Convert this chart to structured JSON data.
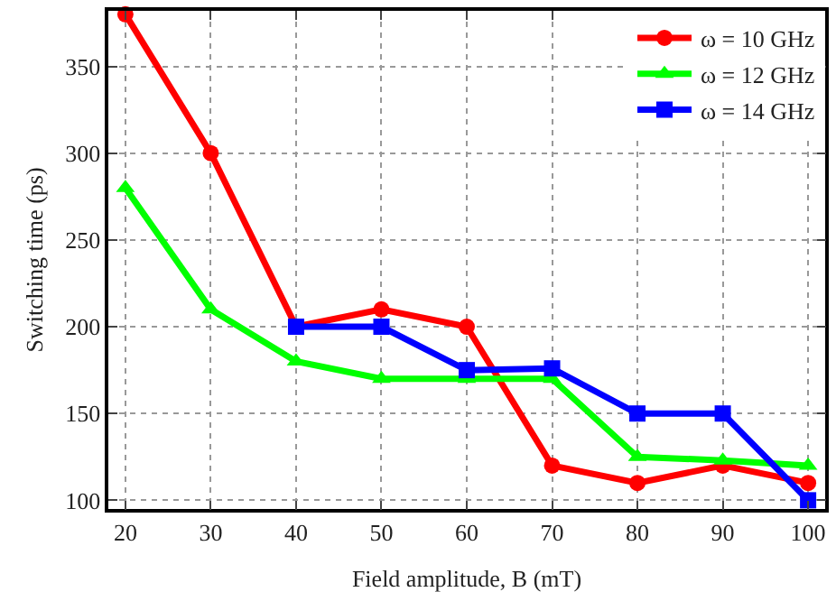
{
  "chart_data": {
    "type": "line",
    "xlabel": "Field amplitude, B (mT)",
    "ylabel": "Switching time (ps)",
    "x": [
      20,
      30,
      40,
      50,
      60,
      70,
      80,
      90,
      100
    ],
    "series": [
      {
        "name": "ω = 10 GHz",
        "color": "#ff0000",
        "marker": "circle",
        "values": [
          380,
          300,
          200,
          210,
          200,
          120,
          110,
          120,
          110
        ]
      },
      {
        "name": "ω = 12 GHz",
        "color": "#00ff00",
        "marker": "triangle",
        "values": [
          280,
          210,
          180,
          170,
          170,
          170,
          125,
          123,
          120
        ]
      },
      {
        "name": "ω = 14 GHz",
        "color": "#0000ff",
        "marker": "square",
        "values": [
          null,
          null,
          200,
          200,
          175,
          176,
          150,
          150,
          100
        ]
      }
    ],
    "xlim": [
      18,
      102
    ],
    "xticks": [
      20,
      30,
      40,
      50,
      60,
      70,
      80,
      90,
      100
    ],
    "ylim": [
      95,
      382
    ],
    "yticks": [
      100,
      150,
      200,
      250,
      300,
      350
    ],
    "grid": true,
    "legend": "top right",
    "line_style": "solid"
  }
}
